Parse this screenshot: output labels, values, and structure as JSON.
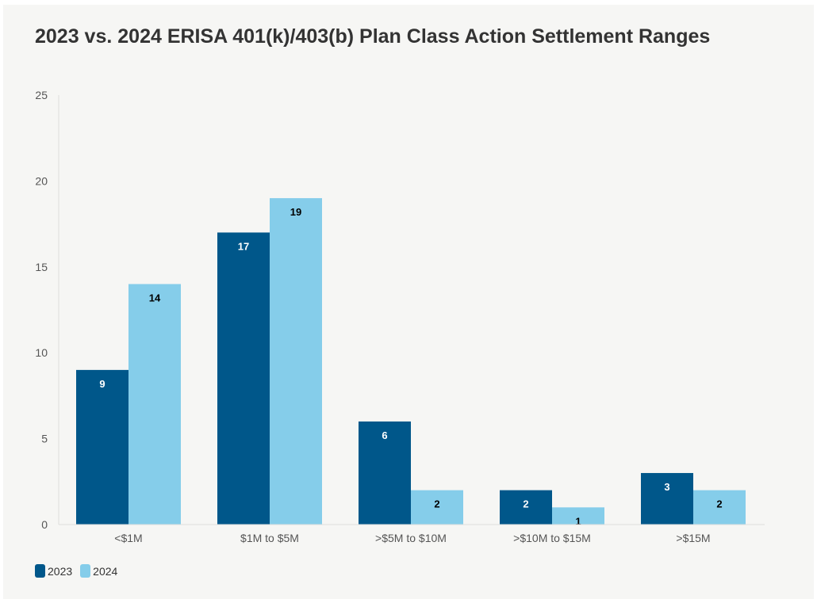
{
  "chart_data": {
    "type": "bar",
    "title": "2023 vs. 2024 ERISA 401(k)/403(b) Plan Class Action Settlement Ranges",
    "xlabel": "",
    "ylabel": "",
    "categories": [
      "<$1M",
      "$1M to $5M",
      ">$5M to $10M",
      ">$10M to $15M",
      ">$15M"
    ],
    "series": [
      {
        "name": "2023",
        "values": [
          9,
          17,
          6,
          2,
          3
        ],
        "color": "#00578a",
        "label_color": "#ffffff"
      },
      {
        "name": "2024",
        "values": [
          14,
          19,
          2,
          1,
          2
        ],
        "color": "#85cdea",
        "label_color": "#000000"
      }
    ],
    "ylim": [
      0,
      25
    ],
    "yticks": [
      0,
      5,
      10,
      15,
      20,
      25
    ],
    "grid": false,
    "legend_position": "bottom-left",
    "data_labels": true
  }
}
